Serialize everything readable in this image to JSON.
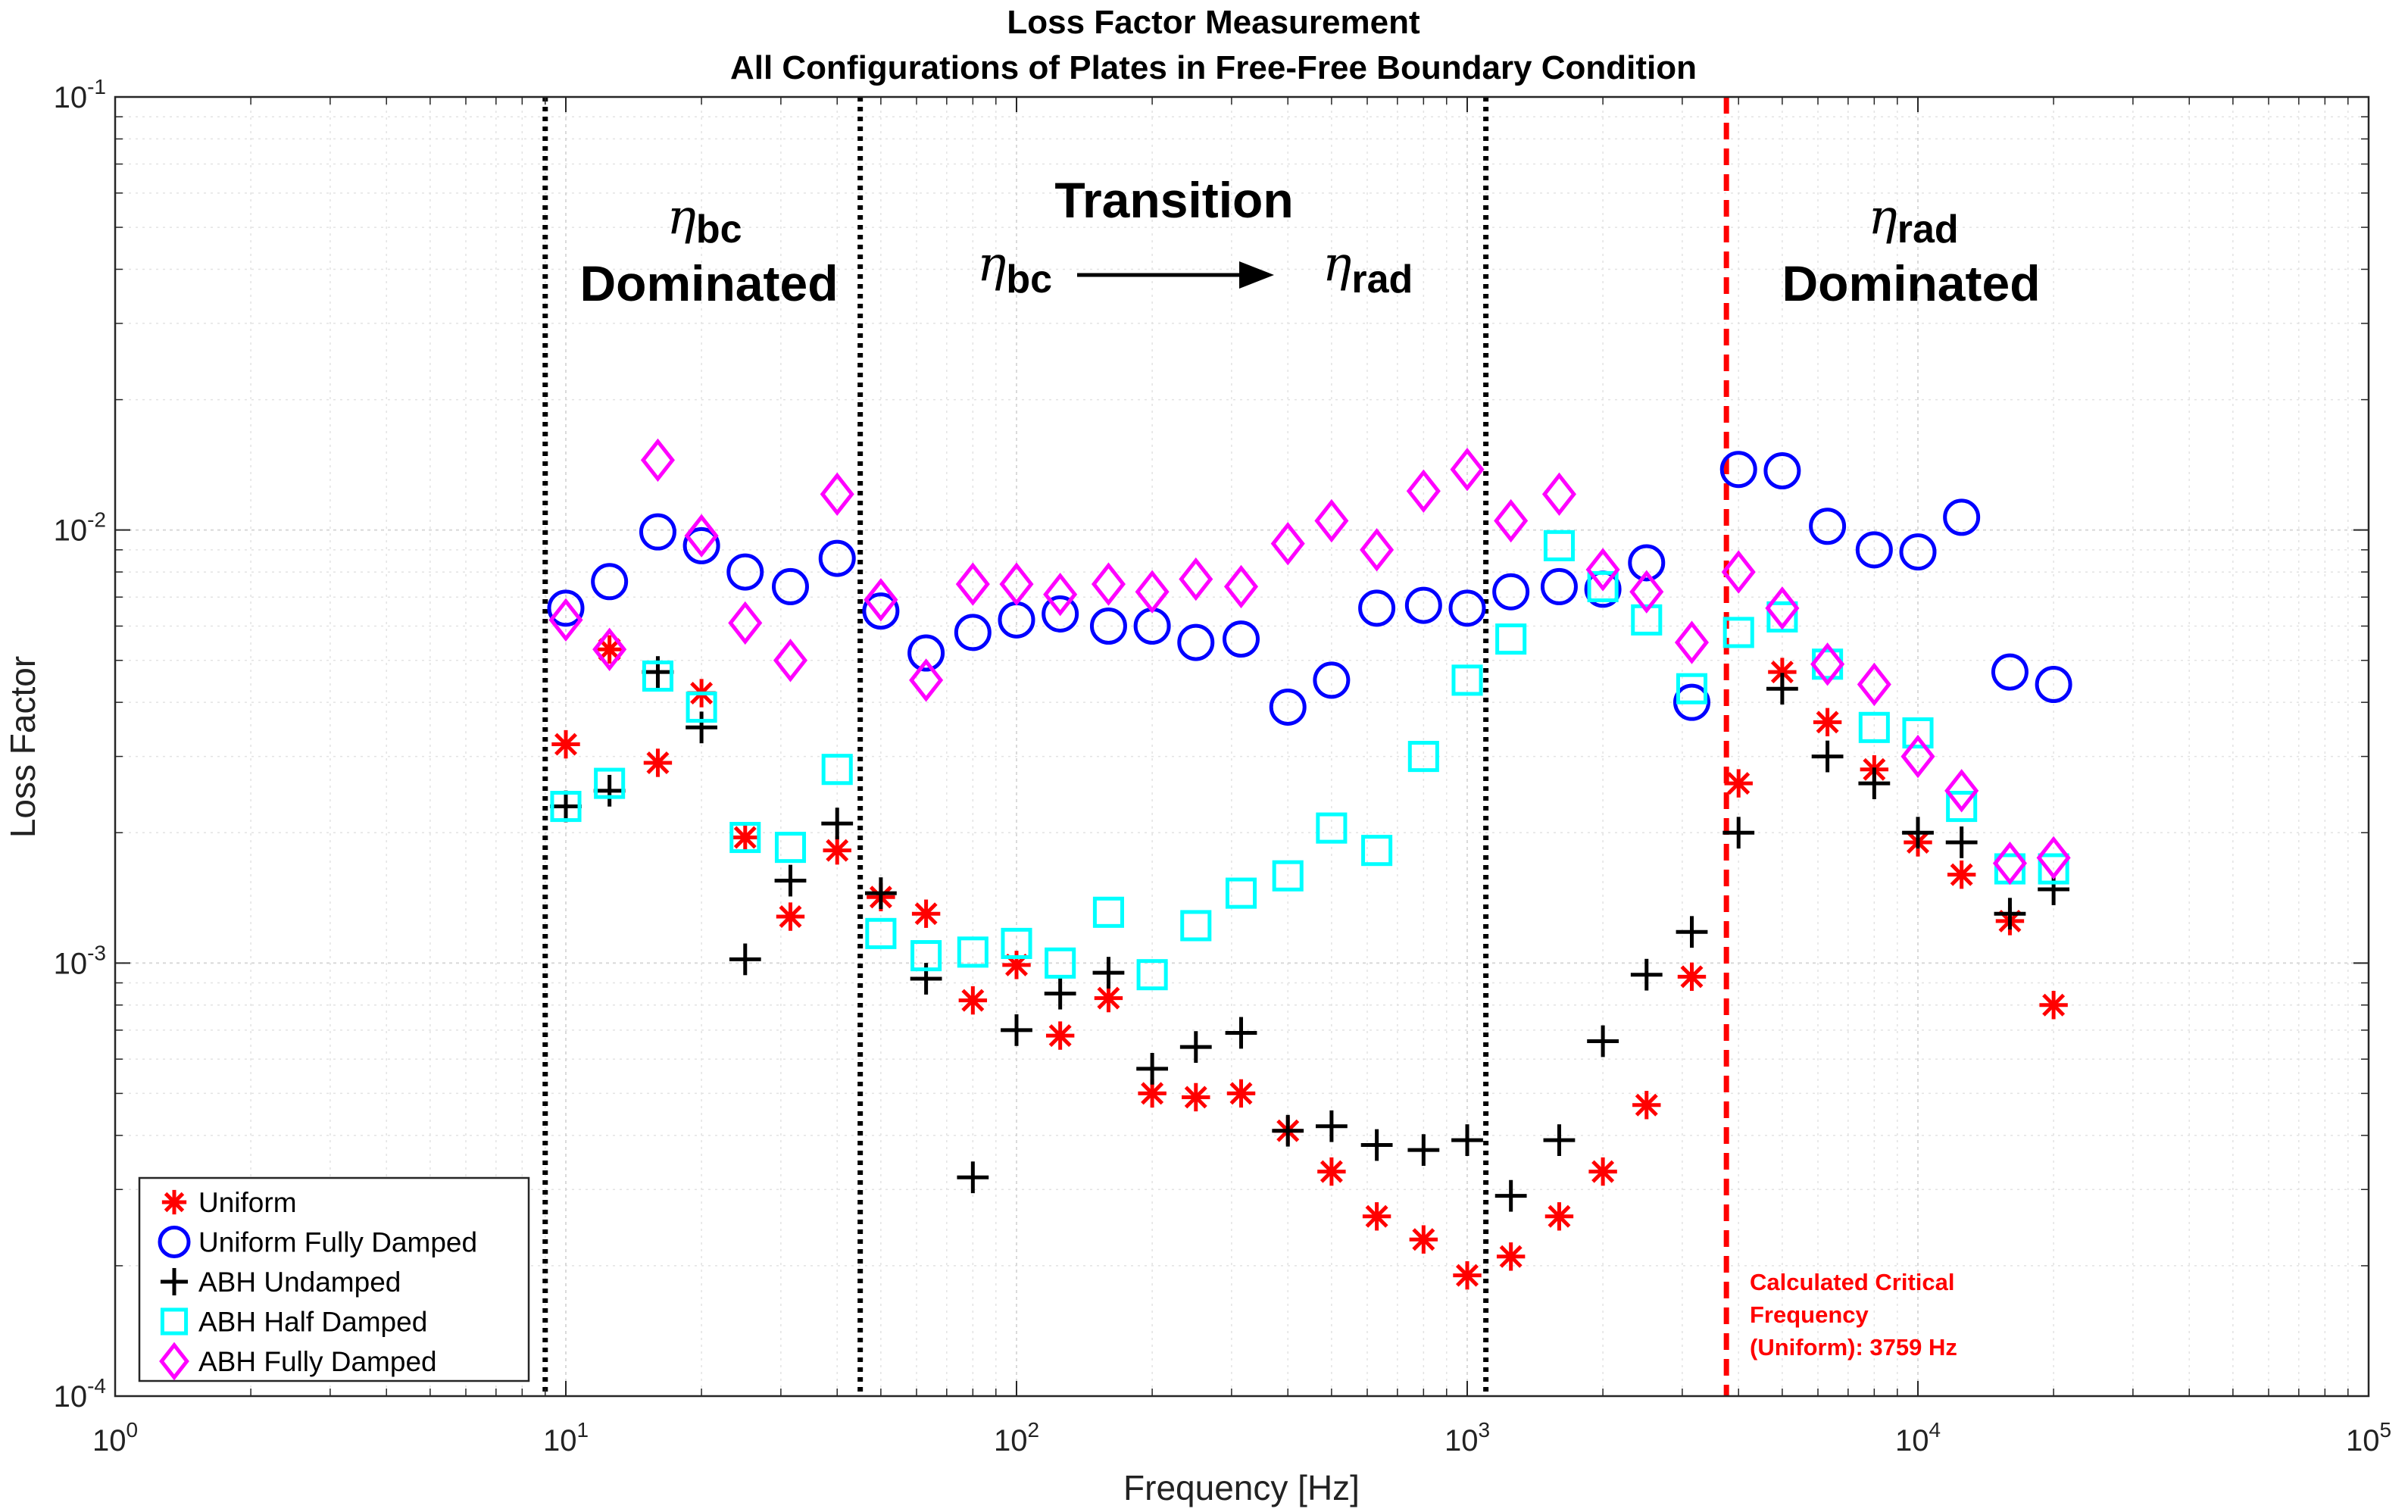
{
  "chart_data": {
    "type": "scatter",
    "title": [
      "Loss Factor Measurement",
      "All Configurations of Plates in Free-Free Boundary Condition"
    ],
    "xlabel": "Frequency [Hz]",
    "ylabel": "Loss Factor",
    "xscale": "log",
    "yscale": "log",
    "xlim": [
      1,
      100000
    ],
    "ylim": [
      0.0001,
      0.1
    ],
    "grid": true,
    "legend_position": "bottom-left",
    "x_ticks": [
      {
        "value": 1,
        "base": "10",
        "exp": "0"
      },
      {
        "value": 10,
        "base": "10",
        "exp": "1"
      },
      {
        "value": 100,
        "base": "10",
        "exp": "2"
      },
      {
        "value": 1000,
        "base": "10",
        "exp": "3"
      },
      {
        "value": 10000,
        "base": "10",
        "exp": "4"
      },
      {
        "value": 100000,
        "base": "10",
        "exp": "5"
      }
    ],
    "y_ticks": [
      {
        "value": 0.0001,
        "base": "10",
        "exp": "-4"
      },
      {
        "value": 0.001,
        "base": "10",
        "exp": "-3"
      },
      {
        "value": 0.01,
        "base": "10",
        "exp": "-2"
      },
      {
        "value": 0.1,
        "base": "10",
        "exp": "-1"
      }
    ],
    "x": [
      10,
      12.5,
      16,
      20,
      25,
      31.5,
      40,
      50,
      63,
      80,
      100,
      125,
      160,
      200,
      250,
      315,
      400,
      500,
      630,
      800,
      1000,
      1250,
      1600,
      2000,
      2500,
      3150,
      4000,
      5000,
      6300,
      8000,
      10000,
      12500,
      16000,
      20000
    ],
    "series": [
      {
        "name": "Uniform",
        "marker": "asterisk",
        "color": "#ff0000",
        "values": [
          0.0032,
          0.0053,
          0.0029,
          0.0042,
          0.00195,
          0.00128,
          0.00182,
          0.00142,
          0.0013,
          0.00082,
          0.00099,
          0.00068,
          0.00083,
          0.0005,
          0.00049,
          0.0005,
          0.00041,
          0.00033,
          0.00026,
          0.00023,
          0.00019,
          0.00021,
          0.00026,
          0.00033,
          0.00047,
          0.00093,
          0.0026,
          0.0047,
          0.0036,
          0.0028,
          0.0019,
          0.0016,
          0.00125,
          0.0008
        ]
      },
      {
        "name": "Uniform Fully Damped",
        "marker": "circle",
        "color": "#0000ff",
        "values": [
          0.0066,
          0.0076,
          0.0099,
          0.0092,
          0.008,
          0.0074,
          0.0086,
          0.0065,
          0.0052,
          0.0058,
          0.0062,
          0.0064,
          0.006,
          0.006,
          0.0055,
          0.0056,
          0.0039,
          0.0045,
          0.0066,
          0.0067,
          0.0066,
          0.0072,
          0.0074,
          0.0073,
          0.0084,
          0.004,
          0.0138,
          0.0137,
          0.0102,
          0.009,
          0.0089,
          0.0107,
          0.0047,
          0.0044
        ]
      },
      {
        "name": "ABH Undamped",
        "marker": "plus",
        "color": "#000000",
        "values": [
          0.0023,
          0.0025,
          0.0047,
          0.0035,
          0.00102,
          0.00155,
          0.0021,
          0.00145,
          0.00092,
          0.00032,
          0.0007,
          0.00085,
          0.00095,
          0.00057,
          0.00064,
          0.00069,
          0.00041,
          0.00042,
          0.00038,
          0.00037,
          0.00039,
          0.00029,
          0.00039,
          0.00066,
          0.00094,
          0.00118,
          0.002,
          0.0043,
          0.003,
          0.0026,
          0.002,
          0.0019,
          0.0013,
          0.00148
        ]
      },
      {
        "name": "ABH Half Damped",
        "marker": "square",
        "color": "#00ffff",
        "values": [
          0.0023,
          0.0026,
          0.0046,
          0.0039,
          0.00195,
          0.00185,
          0.0028,
          0.00117,
          0.00104,
          0.00106,
          0.00111,
          0.001,
          0.00131,
          0.00094,
          0.00122,
          0.00145,
          0.00159,
          0.00205,
          0.00182,
          0.003,
          0.0045,
          0.0056,
          0.0092,
          0.0074,
          0.0062,
          0.0043,
          0.0058,
          0.0063,
          0.0049,
          0.0035,
          0.0034,
          0.0023,
          0.00165,
          0.00165
        ]
      },
      {
        "name": "ABH Fully Damped",
        "marker": "diamond",
        "color": "#ff00ff",
        "values": [
          0.0062,
          0.0053,
          0.0145,
          0.0097,
          0.0061,
          0.005,
          0.0121,
          0.0069,
          0.0045,
          0.0075,
          0.0075,
          0.0071,
          0.0075,
          0.0072,
          0.0077,
          0.0074,
          0.0093,
          0.0105,
          0.009,
          0.0123,
          0.0138,
          0.0105,
          0.0121,
          0.0081,
          0.0072,
          0.0055,
          0.008,
          0.0066,
          0.0049,
          0.0044,
          0.003,
          0.0025,
          0.0017,
          0.00175
        ]
      }
    ],
    "dividers": [
      {
        "x": 9,
        "style": "dotted",
        "color": "#000000"
      },
      {
        "x": 45,
        "style": "dotted",
        "color": "#000000"
      },
      {
        "x": 1100,
        "style": "dotted",
        "color": "#000000"
      },
      {
        "x": 3759,
        "style": "dashed",
        "color": "#ff0000"
      }
    ],
    "annotations": {
      "bc_dominated": {
        "eta": "η",
        "sub": "bc",
        "text": "Dominated"
      },
      "transition": {
        "title": "Transition",
        "from_eta": "η",
        "from_sub": "bc",
        "to_eta": "η",
        "to_sub": "rad"
      },
      "rad_dominated": {
        "eta": "η",
        "sub": "rad",
        "text": "Dominated"
      },
      "critical_frequency": [
        "Calculated Critical",
        "Frequency",
        "(Uniform): 3759 Hz"
      ]
    }
  }
}
